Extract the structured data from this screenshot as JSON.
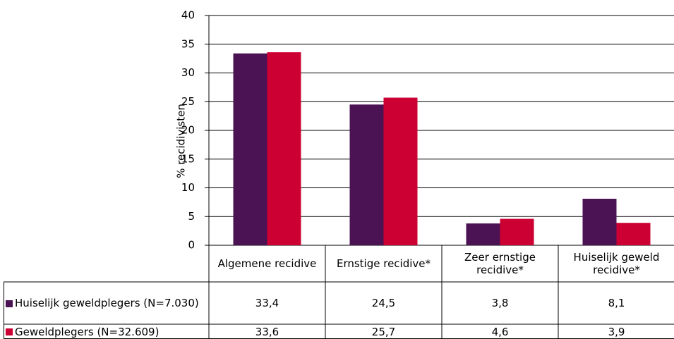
{
  "chart_data": {
    "type": "bar",
    "y_label": "% recidivisten",
    "categories": [
      "Algemene recidive",
      "Ernstige recidive*",
      "Zeer ernstige recidive*",
      "Huiselijk geweld recidive*"
    ],
    "series": [
      {
        "name": "Huiselijk geweldplegers (N=7.030)",
        "color": "#4b1254",
        "values": [
          33.4,
          24.5,
          3.8,
          8.1
        ],
        "value_labels": [
          "33,4",
          "24,5",
          "3,8",
          "8,1"
        ]
      },
      {
        "name": "Geweldplegers (N=32.609)",
        "color": "#cc0033",
        "values": [
          33.6,
          25.7,
          4.6,
          3.9
        ],
        "value_labels": [
          "33,6",
          "25,7",
          "4,6",
          "3,9"
        ]
      }
    ],
    "ylim": [
      0,
      40
    ],
    "yticks": [
      0,
      5,
      10,
      15,
      20,
      25,
      30,
      35,
      40
    ],
    "grid": true
  }
}
